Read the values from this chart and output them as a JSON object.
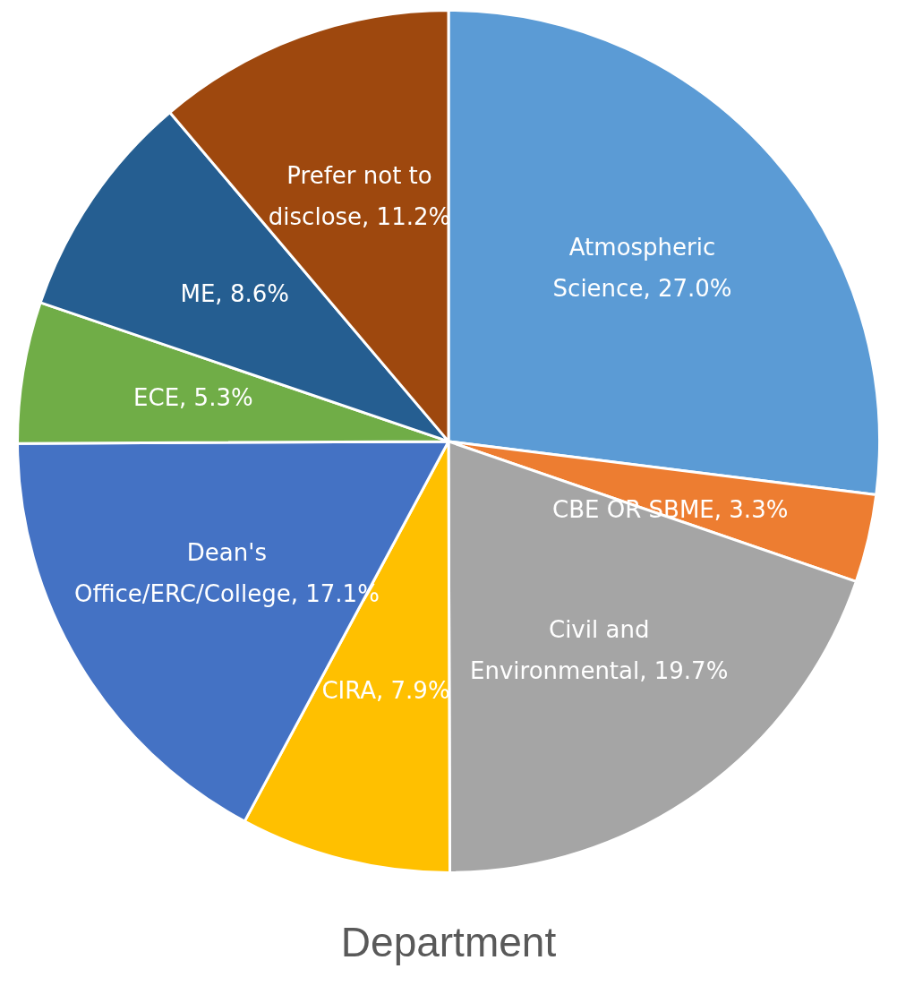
{
  "chart_data": {
    "type": "pie",
    "title": "Department",
    "categories": [
      "Atmospheric Science",
      "CBE OR SBME",
      "Civil and Environmental",
      "CIRA",
      "Dean's Office/ERC/College",
      "ECE",
      "ME",
      "Prefer not to disclose"
    ],
    "values": [
      27.0,
      3.3,
      19.7,
      7.9,
      17.1,
      5.3,
      8.6,
      11.2
    ],
    "value_labels": [
      "27.0%",
      "3.3%",
      "19.7%",
      "7.9%",
      "17.1%",
      "5.3%",
      "8.6%",
      "11.2%"
    ],
    "colors": [
      "#5b9bd5",
      "#ed7d31",
      "#a5a5a5",
      "#ffc000",
      "#4472c4",
      "#70ad47",
      "#255e91",
      "#9e480e"
    ],
    "legend": false
  }
}
